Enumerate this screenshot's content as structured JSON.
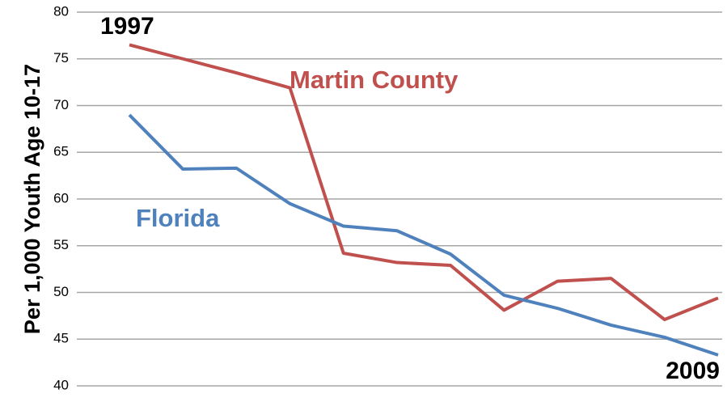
{
  "chart_data": {
    "type": "line",
    "y_label": "Per 1,000 Youth Age 10-17",
    "categories": [
      "1997",
      null,
      null,
      null,
      null,
      null,
      null,
      null,
      null,
      null,
      null,
      "2009"
    ],
    "series": [
      {
        "name": "Martin County",
        "color": "#c0504d",
        "values": [
          76.5,
          75.0,
          73.5,
          71.9,
          54.2,
          53.2,
          52.9,
          48.1,
          51.2,
          51.5,
          47.1,
          49.4
        ]
      },
      {
        "name": "Florida",
        "color": "#4f81bd",
        "values": [
          69.0,
          63.2,
          63.3,
          59.5,
          57.1,
          56.6,
          54.1,
          49.7,
          48.3,
          46.5,
          45.2,
          43.3
        ]
      }
    ],
    "ylim": [
      40,
      80
    ],
    "yticks": [
      40,
      45,
      50,
      55,
      60,
      65,
      70,
      75,
      80
    ],
    "grid": true
  }
}
